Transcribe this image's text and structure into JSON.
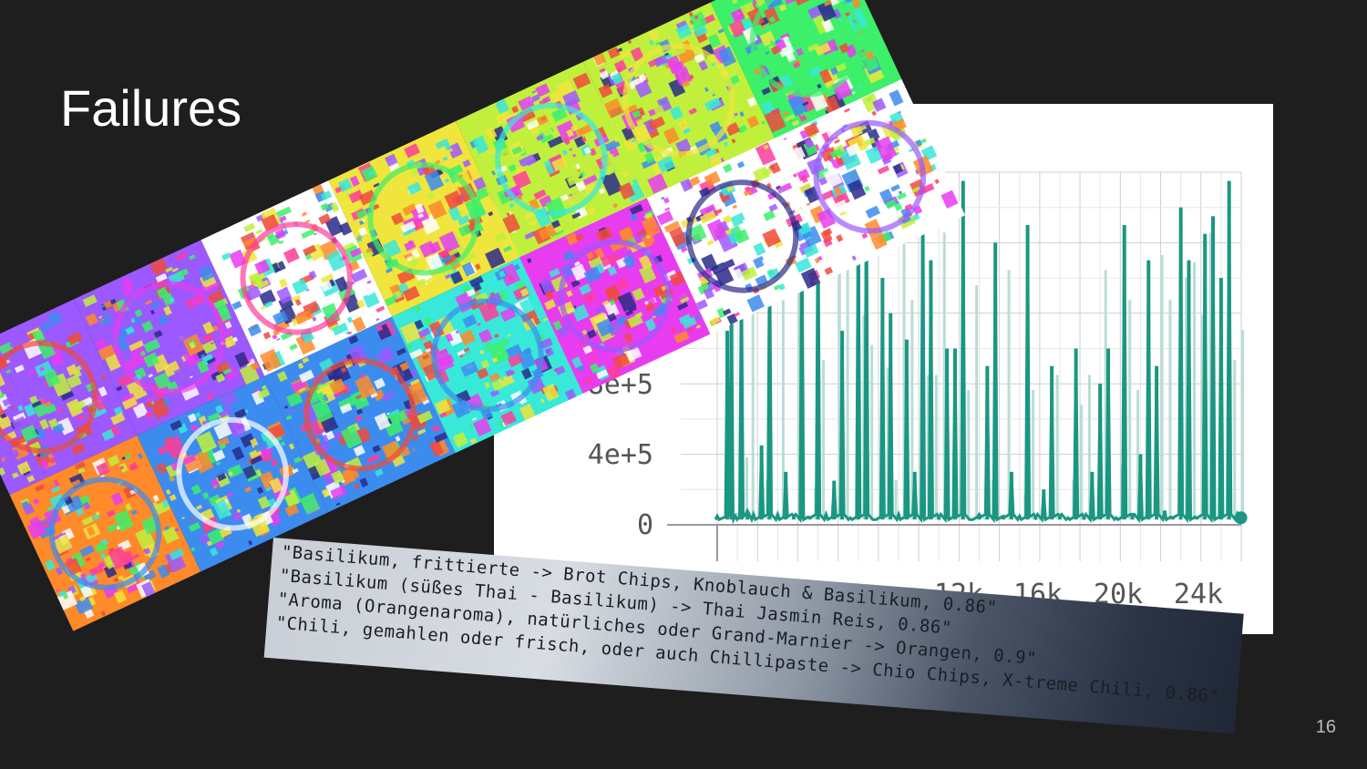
{
  "slide": {
    "title": "Failures",
    "page_number": "16"
  },
  "chart": {
    "y_ticks": [
      "8e+5",
      "4e+5",
      "0"
    ],
    "x_ticks": [
      "12k",
      "16k",
      "20k",
      "24k"
    ],
    "series_color": "#1a9782"
  },
  "chart_data": {
    "type": "line",
    "title": "",
    "xlabel": "",
    "ylabel": "",
    "xlim": [
      0,
      26000
    ],
    "ylim": [
      0,
      2000000
    ],
    "y_ticks": [
      0,
      400000,
      800000
    ],
    "x_ticks": [
      12000,
      16000,
      20000,
      24000
    ],
    "grid": true,
    "series": [
      {
        "values_description_free": true,
        "x": [
          0,
          500,
          700,
          900,
          1200,
          1500,
          1800,
          2200,
          2600,
          3000,
          3400,
          3800,
          4200,
          4600,
          5000,
          5400,
          5800,
          6200,
          6600,
          7000,
          7400,
          7800,
          8200,
          8600,
          9000,
          9400,
          9800,
          10200,
          10600,
          11000,
          11400,
          11800,
          12200,
          12600,
          13000,
          13400,
          13800,
          14200,
          14600,
          15000,
          15400,
          15800,
          16200,
          16600,
          17000,
          17400,
          17800,
          18200,
          18600,
          19000,
          19400,
          19800,
          20200,
          20600,
          21000,
          21400,
          21800,
          22200,
          22600,
          23000,
          23400,
          23800,
          24200,
          24600,
          25000,
          25400,
          25800
        ],
        "y": [
          50000,
          1100000,
          1300000,
          50000,
          1500000,
          80000,
          60000,
          450000,
          1700000,
          60000,
          300000,
          50000,
          1800000,
          40000,
          1900000,
          60000,
          250000,
          1100000,
          40000,
          1900000,
          1950000,
          30000,
          1400000,
          1200000,
          60000,
          1050000,
          300000,
          1950000,
          1500000,
          40000,
          1000000,
          1000000,
          1950000,
          30000,
          60000,
          900000,
          1600000,
          50000,
          300000,
          50000,
          1700000,
          40000,
          200000,
          900000,
          50000,
          40000,
          1000000,
          40000,
          300000,
          800000,
          1000000,
          40000,
          1700000,
          60000,
          400000,
          1500000,
          900000,
          80000,
          40000,
          1800000,
          1500000,
          40000,
          1650000,
          1750000,
          1400000,
          1950000,
          60000
        ]
      }
    ]
  },
  "collage": {
    "tiles": 10
  },
  "terminal": {
    "lines": [
      "\"Basilikum, frittierte -> Brot Chips, Knoblauch & Basilikum, 0.86\"",
      "\"Basilikum (süßes Thai - Basilikum) -> Thai Jasmin Reis, 0.86\"",
      "\"Aroma (Orangenaroma), natürliches oder Grand-Marnier -> Orangen, 0.9\"",
      "\"Chili, gemahlen oder frisch, oder auch Chillipaste -> Chio Chips, X-treme Chili, 0.86\""
    ]
  }
}
